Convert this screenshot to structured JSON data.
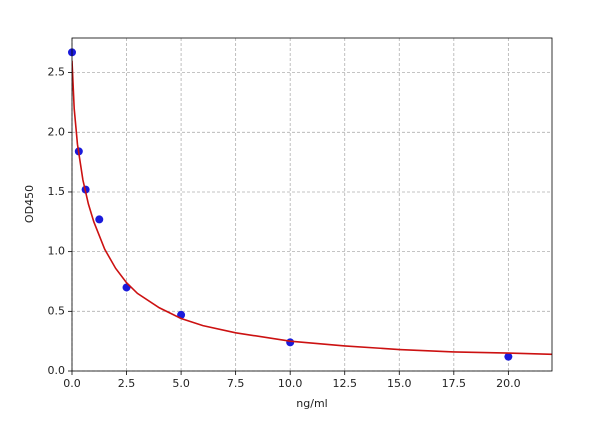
{
  "chart_data": {
    "type": "scatter",
    "x_label": "ng/ml",
    "y_label": "OD450",
    "xlim": [
      0,
      22
    ],
    "ylim": [
      0,
      2.79
    ],
    "xticks": [
      {
        "value": 0,
        "label": "0.0"
      },
      2.5,
      {
        "value": 5,
        "label": "5.0"
      },
      7.5,
      {
        "value": 10,
        "label": "10.0"
      },
      12.5,
      {
        "value": 15,
        "label": "15.0"
      },
      17.5,
      {
        "value": 20,
        "label": "20.0"
      }
    ],
    "yticks": [
      {
        "value": 0,
        "label": "0.0"
      },
      0.5,
      {
        "value": 1,
        "label": "1.0"
      },
      1.5,
      {
        "value": 2,
        "label": "2.0"
      },
      2.5
    ],
    "grid": true,
    "series": [
      {
        "type": "scatter",
        "color": "#1a1adb",
        "x": [
          0,
          0.3125,
          0.625,
          1.25,
          2.5,
          5,
          10,
          20
        ],
        "values": [
          2.67,
          1.84,
          1.52,
          1.27,
          0.7,
          0.47,
          0.24,
          0.12
        ]
      },
      {
        "type": "line",
        "color": "#cc1111",
        "x": [
          0,
          0.1,
          0.25,
          0.5,
          0.75,
          1,
          1.5,
          2,
          2.5,
          3,
          4,
          5,
          6,
          7.5,
          10,
          12.5,
          15,
          17.5,
          20,
          22
        ],
        "values": [
          2.6,
          2.2,
          1.9,
          1.6,
          1.4,
          1.25,
          1.02,
          0.86,
          0.74,
          0.65,
          0.53,
          0.44,
          0.38,
          0.32,
          0.25,
          0.21,
          0.18,
          0.16,
          0.15,
          0.14
        ]
      }
    ]
  }
}
